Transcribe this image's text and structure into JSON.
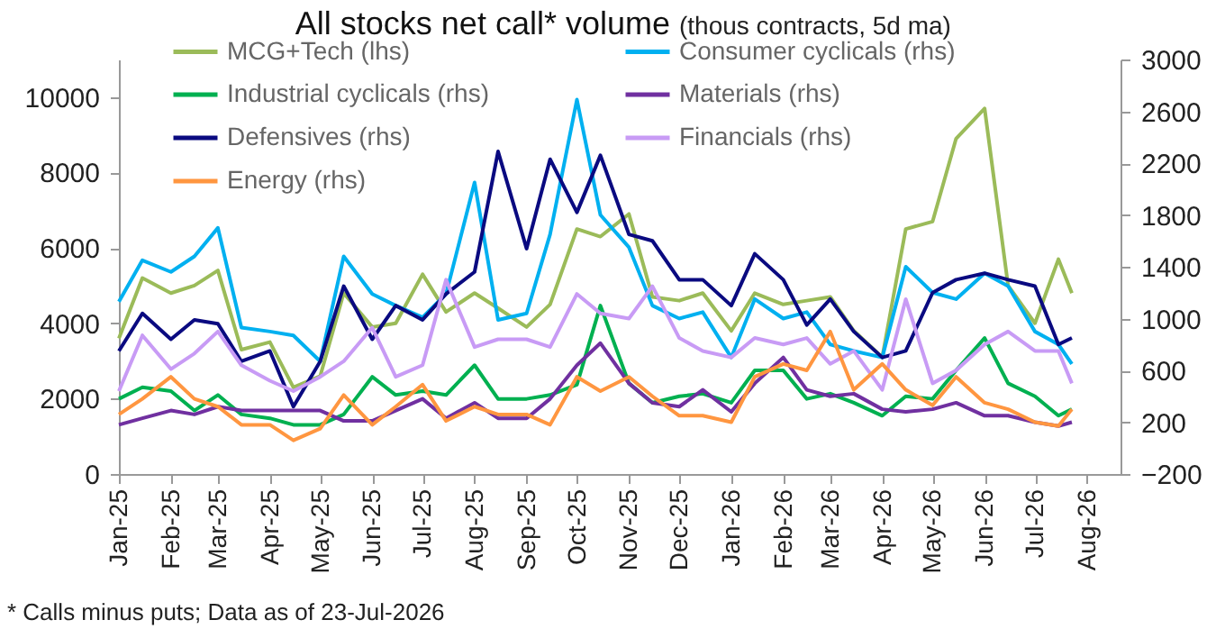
{
  "chart_data": {
    "type": "line",
    "title": "All stocks net call* volume",
    "subtitle": "(thous contracts, 5d ma)",
    "annotations": [
      "* Calls minus puts; Data as of 23-Jul-2026"
    ],
    "x": [
      "2025-01-01",
      "2025-01-15",
      "2025-02-01",
      "2025-02-15",
      "2025-03-01",
      "2025-03-15",
      "2025-04-01",
      "2025-04-15",
      "2025-05-01",
      "2025-05-15",
      "2025-06-01",
      "2025-06-15",
      "2025-07-01",
      "2025-07-15",
      "2025-08-01",
      "2025-08-15",
      "2025-09-01",
      "2025-09-15",
      "2025-10-01",
      "2025-10-15",
      "2025-11-01",
      "2025-11-15",
      "2025-12-01",
      "2025-12-15",
      "2026-01-01",
      "2026-01-15",
      "2026-02-01",
      "2026-02-15",
      "2026-03-01",
      "2026-03-15",
      "2026-04-01",
      "2026-04-15",
      "2026-05-01",
      "2026-05-15",
      "2026-06-01",
      "2026-06-15",
      "2026-07-01",
      "2026-07-15",
      "2026-07-23"
    ],
    "series": [
      {
        "name": "MCG+Tech (lhs)",
        "color": "#9bbb59",
        "values": [
          3600,
          5200,
          4800,
          5000,
          5400,
          3300,
          3500,
          2300,
          2600,
          4800,
          3900,
          4000,
          5300,
          4300,
          4800,
          4400,
          3900,
          4500,
          6500,
          6300,
          6900,
          4700,
          4600,
          4800,
          3800,
          4800,
          4500,
          4600,
          4700,
          3800,
          3100,
          6500,
          6700,
          8900,
          9700,
          5000,
          4000,
          5700,
          4800
        ]
      },
      {
        "name": "Consumer cyclicals (rhs)",
        "color": "#00b0f0",
        "axis": "y2",
        "values": [
          1130,
          1450,
          1360,
          1480,
          1700,
          930,
          900,
          870,
          670,
          1480,
          1190,
          1100,
          1010,
          1190,
          2050,
          990,
          1040,
          1650,
          2690,
          1800,
          1550,
          1100,
          1000,
          1050,
          700,
          1150,
          1000,
          1050,
          800,
          750,
          700,
          1400,
          1200,
          1150,
          1350,
          1250,
          900,
          800,
          650
        ]
      },
      {
        "name": "Industrial cyclicals (rhs)",
        "color": "#00b050",
        "axis": "y2",
        "values": [
          380,
          470,
          440,
          290,
          410,
          260,
          230,
          180,
          180,
          260,
          550,
          410,
          440,
          410,
          640,
          380,
          380,
          410,
          490,
          1100,
          500,
          350,
          400,
          420,
          350,
          600,
          600,
          380,
          420,
          350,
          250,
          400,
          380,
          600,
          850,
          500,
          400,
          250,
          300
        ]
      },
      {
        "name": "Materials (rhs)",
        "color": "#7030a0",
        "axis": "y2",
        "values": [
          180,
          230,
          290,
          260,
          320,
          290,
          290,
          290,
          290,
          210,
          210,
          290,
          380,
          230,
          350,
          230,
          230,
          380,
          640,
          810,
          500,
          350,
          320,
          450,
          280,
          500,
          700,
          450,
          400,
          420,
          300,
          280,
          300,
          350,
          250,
          250,
          200,
          170,
          200
        ]
      },
      {
        "name": "Defensives (rhs)",
        "color": "#0a0a80",
        "axis": "y2",
        "values": [
          750,
          1040,
          840,
          990,
          960,
          670,
          750,
          320,
          670,
          1250,
          840,
          1100,
          990,
          1190,
          1360,
          2290,
          1540,
          2230,
          1820,
          2260,
          1650,
          1600,
          1300,
          1300,
          1100,
          1500,
          1300,
          950,
          1150,
          900,
          700,
          750,
          1200,
          1300,
          1350,
          1300,
          1250,
          800,
          850
        ]
      },
      {
        "name": "Financials (rhs)",
        "color": "#c89bf5",
        "axis": "y2",
        "values": [
          440,
          870,
          610,
          730,
          900,
          640,
          520,
          440,
          550,
          670,
          930,
          550,
          640,
          1300,
          780,
          840,
          840,
          780,
          1190,
          1040,
          1000,
          1250,
          850,
          750,
          700,
          850,
          800,
          850,
          650,
          750,
          450,
          1150,
          500,
          600,
          800,
          900,
          750,
          750,
          500
        ]
      },
      {
        "name": "Energy (rhs)",
        "color": "#ff9640",
        "axis": "y2",
        "values": [
          260,
          380,
          550,
          380,
          320,
          180,
          180,
          60,
          150,
          410,
          180,
          320,
          490,
          210,
          320,
          260,
          260,
          180,
          550,
          440,
          550,
          400,
          250,
          250,
          200,
          550,
          650,
          600,
          900,
          450,
          650,
          450,
          330,
          550,
          350,
          300,
          200,
          170,
          300
        ]
      }
    ],
    "xlim": [
      "2025-01-01",
      "2026-08-21"
    ],
    "xticks": [
      {
        "value": "2025-01-01",
        "label": "Jan-25"
      },
      {
        "value": "2025-02-01",
        "label": "Feb-25"
      },
      {
        "value": "2025-03-01",
        "label": "Mar-25"
      },
      {
        "value": "2025-04-01",
        "label": "Apr-25"
      },
      {
        "value": "2025-05-01",
        "label": "May-25"
      },
      {
        "value": "2025-06-01",
        "label": "Jun-25"
      },
      {
        "value": "2025-07-01",
        "label": "Jul-25"
      },
      {
        "value": "2025-08-01",
        "label": "Aug-25"
      },
      {
        "value": "2025-09-01",
        "label": "Sep-25"
      },
      {
        "value": "2025-10-01",
        "label": "Oct-25"
      },
      {
        "value": "2025-11-01",
        "label": "Nov-25"
      },
      {
        "value": "2025-12-01",
        "label": "Dec-25"
      },
      {
        "value": "2026-01-01",
        "label": "Jan-26"
      },
      {
        "value": "2026-02-01",
        "label": "Feb-26"
      },
      {
        "value": "2026-03-01",
        "label": "Mar-26"
      },
      {
        "value": "2026-04-01",
        "label": "Apr-26"
      },
      {
        "value": "2026-05-01",
        "label": "May-26"
      },
      {
        "value": "2026-06-01",
        "label": "Jun-26"
      },
      {
        "value": "2026-07-01",
        "label": "Jul-26"
      },
      {
        "value": "2026-08-01",
        "label": "Aug-26"
      }
    ],
    "ylim": [
      0,
      11000
    ],
    "yticks": [
      0,
      2000,
      4000,
      6000,
      8000,
      10000
    ],
    "y2lim": [
      -200,
      3000
    ],
    "y2ticks": [
      -200,
      200,
      600,
      1000,
      1400,
      1800,
      2200,
      2600,
      3000
    ],
    "grid": false,
    "legend": "top left",
    "line_style": "solid",
    "marker": "none"
  }
}
